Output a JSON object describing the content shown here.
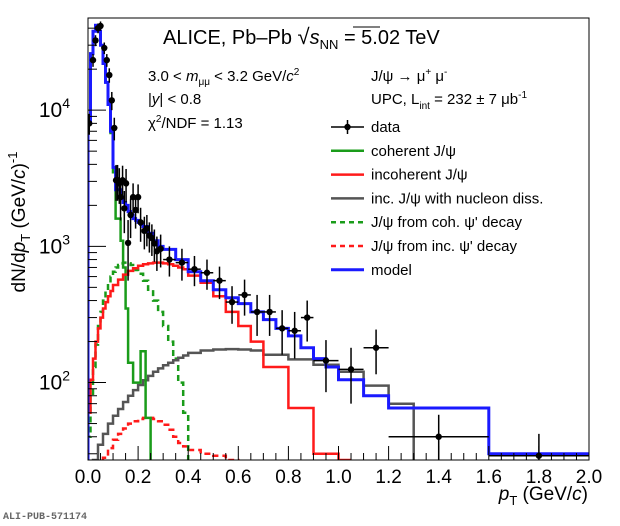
{
  "chart_data": {
    "type": "line",
    "title": "ALICE, Pb–Pb √s_NN = 5.02 TeV",
    "title_parts": {
      "main": "ALICE, Pb–Pb ",
      "sqrt": "√",
      "s": "s",
      "sub": "NN",
      "rest": " = 5.02 TeV"
    },
    "xlabel": "p_T (GeV/c)",
    "xlabel_parts": {
      "p": "p",
      "sub": "T",
      "rest": " (GeV/",
      "c": "c",
      "close": ")"
    },
    "ylabel": "dN/dp_T (GeV/c)^-1",
    "ylabel_parts": {
      "a": "dN/d",
      "p": "p",
      "sub": "T",
      "b": " (GeV/",
      "c": "c",
      "close": ")",
      "sup": "-1"
    },
    "xlim": [
      0.0,
      2.0
    ],
    "ylim": [
      27,
      47500
    ],
    "yscale": "log",
    "x_ticks": [
      "0.0",
      "0.2",
      "0.4",
      "0.6",
      "0.8",
      "1.0",
      "1.2",
      "1.4",
      "1.6",
      "1.8",
      "2.0"
    ],
    "x_tick_values": [
      0.0,
      0.2,
      0.4,
      0.6,
      0.8,
      1.0,
      1.2,
      1.4,
      1.6,
      1.8,
      2.0
    ],
    "y_ticks": [
      {
        "base": "10",
        "exp": "2",
        "value": 100
      },
      {
        "base": "10",
        "exp": "3",
        "value": 1000
      },
      {
        "base": "10",
        "exp": "4",
        "value": 10000
      }
    ],
    "annotations": {
      "cut1": {
        "a": "3.0 < ",
        "m": "m",
        "sub": "μμ",
        "b": " < 3.2 GeV/",
        "c": "c",
        "sup": "2"
      },
      "cut2": {
        "a": "|",
        "y": "y",
        "b": "| < 0.8"
      },
      "chi2": {
        "a": "χ",
        "sup": "2",
        "b": "/NDF = 1.13"
      },
      "decay": {
        "a": "J/ψ → μ",
        "sup1": "+",
        "b": " μ",
        "sup2": "-"
      },
      "lumi": {
        "a": "UPC, L",
        "sub": "int",
        "b": " = 232 ± 7 μb",
        "sup": "-1"
      }
    },
    "legend_position": "top-right",
    "series": [
      {
        "name": "data",
        "kind": "points",
        "color": "#000000",
        "points": [
          {
            "x": 0.005,
            "xerr": 0.005,
            "y": 8000,
            "yerr": 1400
          },
          {
            "x": 0.02,
            "xerr": 0.005,
            "y": 23300,
            "yerr": 2500
          },
          {
            "x": 0.03,
            "xerr": 0.005,
            "y": 32500,
            "yerr": 3000
          },
          {
            "x": 0.04,
            "xerr": 0.005,
            "y": 40000,
            "yerr": 3300
          },
          {
            "x": 0.05,
            "xerr": 0.005,
            "y": 41500,
            "yerr": 3300
          },
          {
            "x": 0.065,
            "xerr": 0.005,
            "y": 28600,
            "yerr": 2800
          },
          {
            "x": 0.075,
            "xerr": 0.005,
            "y": 23300,
            "yerr": 2500
          },
          {
            "x": 0.085,
            "xerr": 0.005,
            "y": 18100,
            "yerr": 2200
          },
          {
            "x": 0.095,
            "xerr": 0.005,
            "y": 11800,
            "yerr": 1800
          },
          {
            "x": 0.105,
            "xerr": 0.005,
            "y": 7400,
            "yerr": 1400
          },
          {
            "x": 0.112,
            "xerr": 0.004,
            "y": 3060,
            "yerr": 900
          },
          {
            "x": 0.118,
            "xerr": 0.004,
            "y": 3060,
            "yerr": 900
          },
          {
            "x": 0.125,
            "xerr": 0.004,
            "y": 2900,
            "yerr": 850
          },
          {
            "x": 0.13,
            "xerr": 0.004,
            "y": 2300,
            "yerr": 750
          },
          {
            "x": 0.138,
            "xerr": 0.004,
            "y": 3060,
            "yerr": 850
          },
          {
            "x": 0.145,
            "xerr": 0.004,
            "y": 1900,
            "yerr": 650
          },
          {
            "x": 0.152,
            "xerr": 0.004,
            "y": 2900,
            "yerr": 800
          },
          {
            "x": 0.16,
            "xerr": 0.004,
            "y": 1060,
            "yerr": 500
          },
          {
            "x": 0.17,
            "xerr": 0.005,
            "y": 1700,
            "yerr": 550
          },
          {
            "x": 0.18,
            "xerr": 0.005,
            "y": 2300,
            "yerr": 600
          },
          {
            "x": 0.19,
            "xerr": 0.005,
            "y": 1850,
            "yerr": 500
          },
          {
            "x": 0.2,
            "xerr": 0.005,
            "y": 2300,
            "yerr": 550
          },
          {
            "x": 0.21,
            "xerr": 0.005,
            "y": 1500,
            "yerr": 420
          },
          {
            "x": 0.225,
            "xerr": 0.01,
            "y": 1300,
            "yerr": 350
          },
          {
            "x": 0.235,
            "xerr": 0.01,
            "y": 1350,
            "yerr": 350
          },
          {
            "x": 0.245,
            "xerr": 0.01,
            "y": 1200,
            "yerr": 300
          },
          {
            "x": 0.255,
            "xerr": 0.01,
            "y": 1150,
            "yerr": 300
          },
          {
            "x": 0.265,
            "xerr": 0.01,
            "y": 1050,
            "yerr": 280
          },
          {
            "x": 0.275,
            "xerr": 0.01,
            "y": 920,
            "yerr": 260
          },
          {
            "x": 0.29,
            "xerr": 0.01,
            "y": 960,
            "yerr": 260
          },
          {
            "x": 0.325,
            "xerr": 0.025,
            "y": 800,
            "yerr": 200
          },
          {
            "x": 0.375,
            "xerr": 0.025,
            "y": 760,
            "yerr": 200
          },
          {
            "x": 0.425,
            "xerr": 0.025,
            "y": 680,
            "yerr": 170
          },
          {
            "x": 0.475,
            "xerr": 0.025,
            "y": 640,
            "yerr": 160
          },
          {
            "x": 0.525,
            "xerr": 0.025,
            "y": 560,
            "yerr": 150
          },
          {
            "x": 0.575,
            "xerr": 0.025,
            "y": 390,
            "yerr": 120
          },
          {
            "x": 0.625,
            "xerr": 0.025,
            "y": 440,
            "yerr": 130
          },
          {
            "x": 0.675,
            "xerr": 0.025,
            "y": 330,
            "yerr": 110
          },
          {
            "x": 0.725,
            "xerr": 0.025,
            "y": 330,
            "yerr": 110
          },
          {
            "x": 0.775,
            "xerr": 0.025,
            "y": 250,
            "yerr": 90
          },
          {
            "x": 0.825,
            "xerr": 0.025,
            "y": 240,
            "yerr": 90
          },
          {
            "x": 0.875,
            "xerr": 0.025,
            "y": 300,
            "yerr": 100
          },
          {
            "x": 0.95,
            "xerr": 0.05,
            "y": 145,
            "yerr": 60
          },
          {
            "x": 1.05,
            "xerr": 0.05,
            "y": 125,
            "yerr": 55
          },
          {
            "x": 1.15,
            "xerr": 0.05,
            "y": 180,
            "yerr": 65
          },
          {
            "x": 1.4,
            "xerr": 0.2,
            "y": 40,
            "yerr": 18
          },
          {
            "x": 1.8,
            "xerr": 0.2,
            "y": 29,
            "yerr": 13
          }
        ]
      },
      {
        "name": "coherent J/ψ",
        "kind": "step",
        "color": "#1a9c1a",
        "dashed": false,
        "edges": [
          0.0,
          0.01,
          0.02,
          0.03,
          0.04,
          0.05,
          0.06,
          0.07,
          0.08,
          0.09,
          0.1,
          0.11,
          0.12,
          0.13,
          0.14,
          0.15,
          0.16,
          0.17,
          0.18,
          0.19,
          0.2,
          0.21,
          0.22,
          0.23,
          0.24,
          0.25
        ],
        "values": [
          8000,
          26000,
          38000,
          42000,
          38000,
          30000,
          22000,
          16000,
          11000,
          6800,
          3500,
          1600,
          1600,
          1100,
          700,
          350,
          140,
          140,
          100,
          100,
          100,
          170,
          170,
          55,
          55
        ]
      },
      {
        "name": "incoherent J/ψ",
        "kind": "step",
        "color": "#ff1a1a",
        "dashed": false,
        "edges": [
          0.0,
          0.01,
          0.02,
          0.03,
          0.04,
          0.05,
          0.06,
          0.07,
          0.08,
          0.09,
          0.1,
          0.12,
          0.14,
          0.16,
          0.18,
          0.2,
          0.22,
          0.24,
          0.26,
          0.28,
          0.3,
          0.32,
          0.34,
          0.36,
          0.38,
          0.4,
          0.45,
          0.5,
          0.55,
          0.6,
          0.65,
          0.7,
          0.8,
          0.9,
          1.0,
          1.05
        ],
        "values": [
          60,
          105,
          150,
          200,
          250,
          300,
          350,
          390,
          430,
          470,
          520,
          570,
          620,
          660,
          690,
          720,
          740,
          750,
          760,
          760,
          750,
          740,
          720,
          700,
          680,
          610,
          540,
          430,
          330,
          260,
          200,
          130,
          65,
          30,
          27
        ]
      },
      {
        "name": "inc. J/ψ with nucleon diss.",
        "kind": "step",
        "color": "#555555",
        "dashed": false,
        "edges": [
          0.0,
          0.02,
          0.04,
          0.06,
          0.08,
          0.1,
          0.12,
          0.14,
          0.16,
          0.18,
          0.2,
          0.22,
          0.24,
          0.26,
          0.28,
          0.3,
          0.32,
          0.34,
          0.36,
          0.38,
          0.4,
          0.45,
          0.5,
          0.55,
          0.6,
          0.65,
          0.7,
          0.8,
          0.9,
          1.0,
          1.1,
          1.2,
          1.3
        ],
        "values": [
          20,
          27,
          35,
          42,
          50,
          57,
          64,
          72,
          80,
          88,
          96,
          104,
          112,
          120,
          127,
          134,
          140,
          146,
          152,
          158,
          165,
          172,
          175,
          176,
          175,
          172,
          160,
          148,
          135,
          120,
          95,
          70
        ]
      },
      {
        "name": "J/ψ from coh. ψ' decay",
        "kind": "step",
        "color": "#1a9c1a",
        "dashed": true,
        "edges": [
          0.0,
          0.01,
          0.02,
          0.03,
          0.04,
          0.05,
          0.06,
          0.07,
          0.08,
          0.09,
          0.1,
          0.11,
          0.12,
          0.13,
          0.14,
          0.15,
          0.16,
          0.17,
          0.18,
          0.19,
          0.2,
          0.22,
          0.24,
          0.26,
          0.28,
          0.3,
          0.32,
          0.34,
          0.36,
          0.38,
          0.4,
          0.42
        ],
        "values": [
          40,
          80,
          130,
          190,
          260,
          330,
          400,
          470,
          540,
          600,
          650,
          700,
          730,
          750,
          760,
          760,
          750,
          730,
          700,
          670,
          630,
          560,
          480,
          400,
          330,
          260,
          200,
          150,
          100,
          60,
          27
        ]
      },
      {
        "name": "J/ψ from inc. ψ' decay",
        "kind": "step",
        "color": "#ff1a1a",
        "dashed": true,
        "edges": [
          0.0,
          0.04,
          0.06,
          0.08,
          0.1,
          0.12,
          0.14,
          0.16,
          0.18,
          0.2,
          0.22,
          0.24,
          0.26,
          0.28,
          0.3,
          0.32,
          0.34,
          0.36,
          0.38,
          0.4,
          0.45,
          0.5,
          0.55,
          0.6,
          0.65
        ],
        "values": [
          20,
          24,
          28,
          33,
          38,
          42,
          46,
          50,
          52,
          54,
          55,
          55,
          54,
          52,
          49,
          45,
          40,
          36,
          34,
          32,
          30,
          29,
          27,
          25
        ]
      },
      {
        "name": "model",
        "kind": "step",
        "color": "#1a1aff",
        "dashed": false,
        "edges": [
          0.0,
          0.01,
          0.02,
          0.03,
          0.04,
          0.05,
          0.06,
          0.07,
          0.08,
          0.09,
          0.1,
          0.11,
          0.12,
          0.13,
          0.14,
          0.15,
          0.16,
          0.17,
          0.18,
          0.19,
          0.2,
          0.21,
          0.22,
          0.24,
          0.26,
          0.28,
          0.3,
          0.35,
          0.4,
          0.45,
          0.5,
          0.55,
          0.6,
          0.65,
          0.7,
          0.75,
          0.8,
          0.85,
          0.9,
          0.95,
          1.0,
          1.1,
          1.2,
          1.6,
          2.0
        ],
        "values": [
          8000,
          26000,
          38000,
          42000,
          38000,
          30000,
          22000,
          16000,
          11000,
          7000,
          3800,
          2600,
          2600,
          2300,
          2100,
          2000,
          1800,
          1700,
          1600,
          1550,
          1500,
          1450,
          1400,
          1250,
          1100,
          1000,
          950,
          800,
          650,
          560,
          480,
          420,
          380,
          330,
          290,
          250,
          220,
          180,
          150,
          130,
          105,
          80,
          65,
          30
        ]
      }
    ]
  },
  "footer": {
    "publication_id": "ALI-PUB-571174"
  }
}
